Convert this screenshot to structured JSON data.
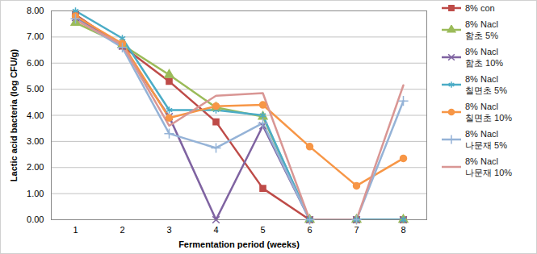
{
  "chart_data": {
    "type": "line",
    "x_label": "Fermentation period (weeks)",
    "y_label": "Lactic acid bacteria (log CFU/g)",
    "categories": [
      "1",
      "2",
      "3",
      "4",
      "5",
      "6",
      "7",
      "8"
    ],
    "ylim": [
      0,
      8
    ],
    "yticks": [
      {
        "value": 0,
        "label": "0.00"
      },
      {
        "value": 1,
        "label": "1.00"
      },
      {
        "value": 2,
        "label": "2.00"
      },
      {
        "value": 3,
        "label": "3.00"
      },
      {
        "value": 4,
        "label": "4.00"
      },
      {
        "value": 5,
        "label": "5.00"
      },
      {
        "value": 6,
        "label": "6.00"
      },
      {
        "value": 7,
        "label": "7.00"
      },
      {
        "value": 8,
        "label": "8.00"
      }
    ],
    "grid": true,
    "legend": "right",
    "series": [
      {
        "name": "8% con",
        "color": "#be4b48",
        "marker": "square",
        "values": [
          7.85,
          6.65,
          5.3,
          3.75,
          1.2,
          0,
          0,
          0
        ]
      },
      {
        "name": "8% Nacl 함초 5%",
        "color": "#9bbb59",
        "marker": "triangle",
        "values": [
          7.55,
          6.7,
          5.55,
          4.3,
          3.95,
          0,
          0,
          0
        ]
      },
      {
        "name": "8% Nacl 함초 10%",
        "color": "#7f63a1",
        "marker": "times",
        "values": [
          7.75,
          6.65,
          3.95,
          0,
          3.6,
          0,
          0,
          0
        ]
      },
      {
        "name": "8% Nacl 칠면초 5%",
        "color": "#4bacc6",
        "marker": "asterisk",
        "values": [
          8.0,
          6.95,
          4.2,
          4.2,
          4.0,
          0,
          0,
          0
        ]
      },
      {
        "name": "8% Nacl 칠면초 10%",
        "color": "#f79646",
        "marker": "circle",
        "values": [
          7.8,
          6.75,
          3.9,
          4.35,
          4.4,
          2.8,
          1.3,
          2.35
        ]
      },
      {
        "name": "8% Nacl 나문재 5%",
        "color": "#95b3d7",
        "marker": "plus",
        "values": [
          7.7,
          6.6,
          3.3,
          2.75,
          3.7,
          0,
          0,
          4.55
        ]
      },
      {
        "name": "8% Nacl 나문재 10%",
        "color": "#d99694",
        "marker": "none",
        "values": [
          7.65,
          6.7,
          3.6,
          4.75,
          4.85,
          0,
          0,
          5.15
        ]
      }
    ]
  }
}
